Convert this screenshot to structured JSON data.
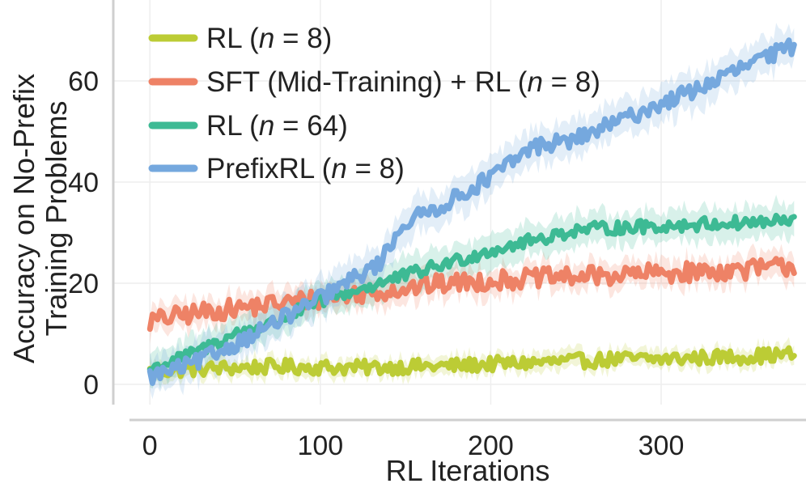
{
  "chart_data": {
    "type": "line",
    "title": "",
    "xlabel": "RL Iterations",
    "ylabel": [
      "Accuracy on No-Prefix",
      "Training Problems"
    ],
    "xlim": [
      -12,
      385
    ],
    "ylim": [
      -4,
      76
    ],
    "xticks": [
      0,
      100,
      200,
      300
    ],
    "yticks": [
      0,
      20,
      40,
      60
    ],
    "grid": true,
    "legend_position": "top-left",
    "series": [
      {
        "name": "RL",
        "n": "8",
        "color": "#bccc35",
        "x": [
          0,
          25,
          50,
          75,
          100,
          125,
          150,
          175,
          200,
          225,
          250,
          275,
          300,
          325,
          350,
          378
        ],
        "y": [
          2.5,
          3.0,
          3.3,
          3.5,
          3.4,
          3.3,
          3.5,
          3.6,
          4.0,
          4.3,
          4.6,
          5.0,
          5.0,
          5.3,
          5.5,
          6.0
        ]
      },
      {
        "name": "SFT (Mid-Training) + RL",
        "n": "8",
        "color": "#ee8266",
        "x": [
          0,
          25,
          50,
          75,
          100,
          125,
          150,
          175,
          200,
          225,
          250,
          275,
          300,
          325,
          350,
          378
        ],
        "y": [
          12.5,
          14.0,
          15.0,
          16.0,
          17.0,
          18.0,
          19.0,
          20.0,
          20.5,
          21.0,
          21.3,
          21.6,
          22.0,
          22.3,
          22.7,
          23.5
        ]
      },
      {
        "name": "RL",
        "n": "64",
        "color": "#3dba94",
        "x": [
          0,
          25,
          50,
          75,
          100,
          125,
          150,
          175,
          200,
          225,
          250,
          275,
          300,
          325,
          350,
          378
        ],
        "y": [
          3.0,
          6.0,
          10.0,
          12.5,
          16.5,
          19.0,
          21.5,
          24.0,
          26.5,
          28.5,
          30.5,
          31.0,
          31.3,
          31.7,
          32.0,
          32.3
        ]
      },
      {
        "name": "PrefixRL",
        "n": "8",
        "color": "#75a8de",
        "x": [
          0,
          25,
          50,
          75,
          100,
          125,
          135,
          145,
          150,
          175,
          200,
          225,
          250,
          275,
          300,
          325,
          350,
          378
        ],
        "y": [
          1.5,
          4.0,
          8.0,
          12.5,
          17.0,
          22.0,
          24.0,
          30.0,
          32.0,
          36.0,
          41.0,
          47.0,
          48.5,
          52.0,
          55.5,
          59.0,
          63.0,
          67.0
        ]
      }
    ]
  }
}
